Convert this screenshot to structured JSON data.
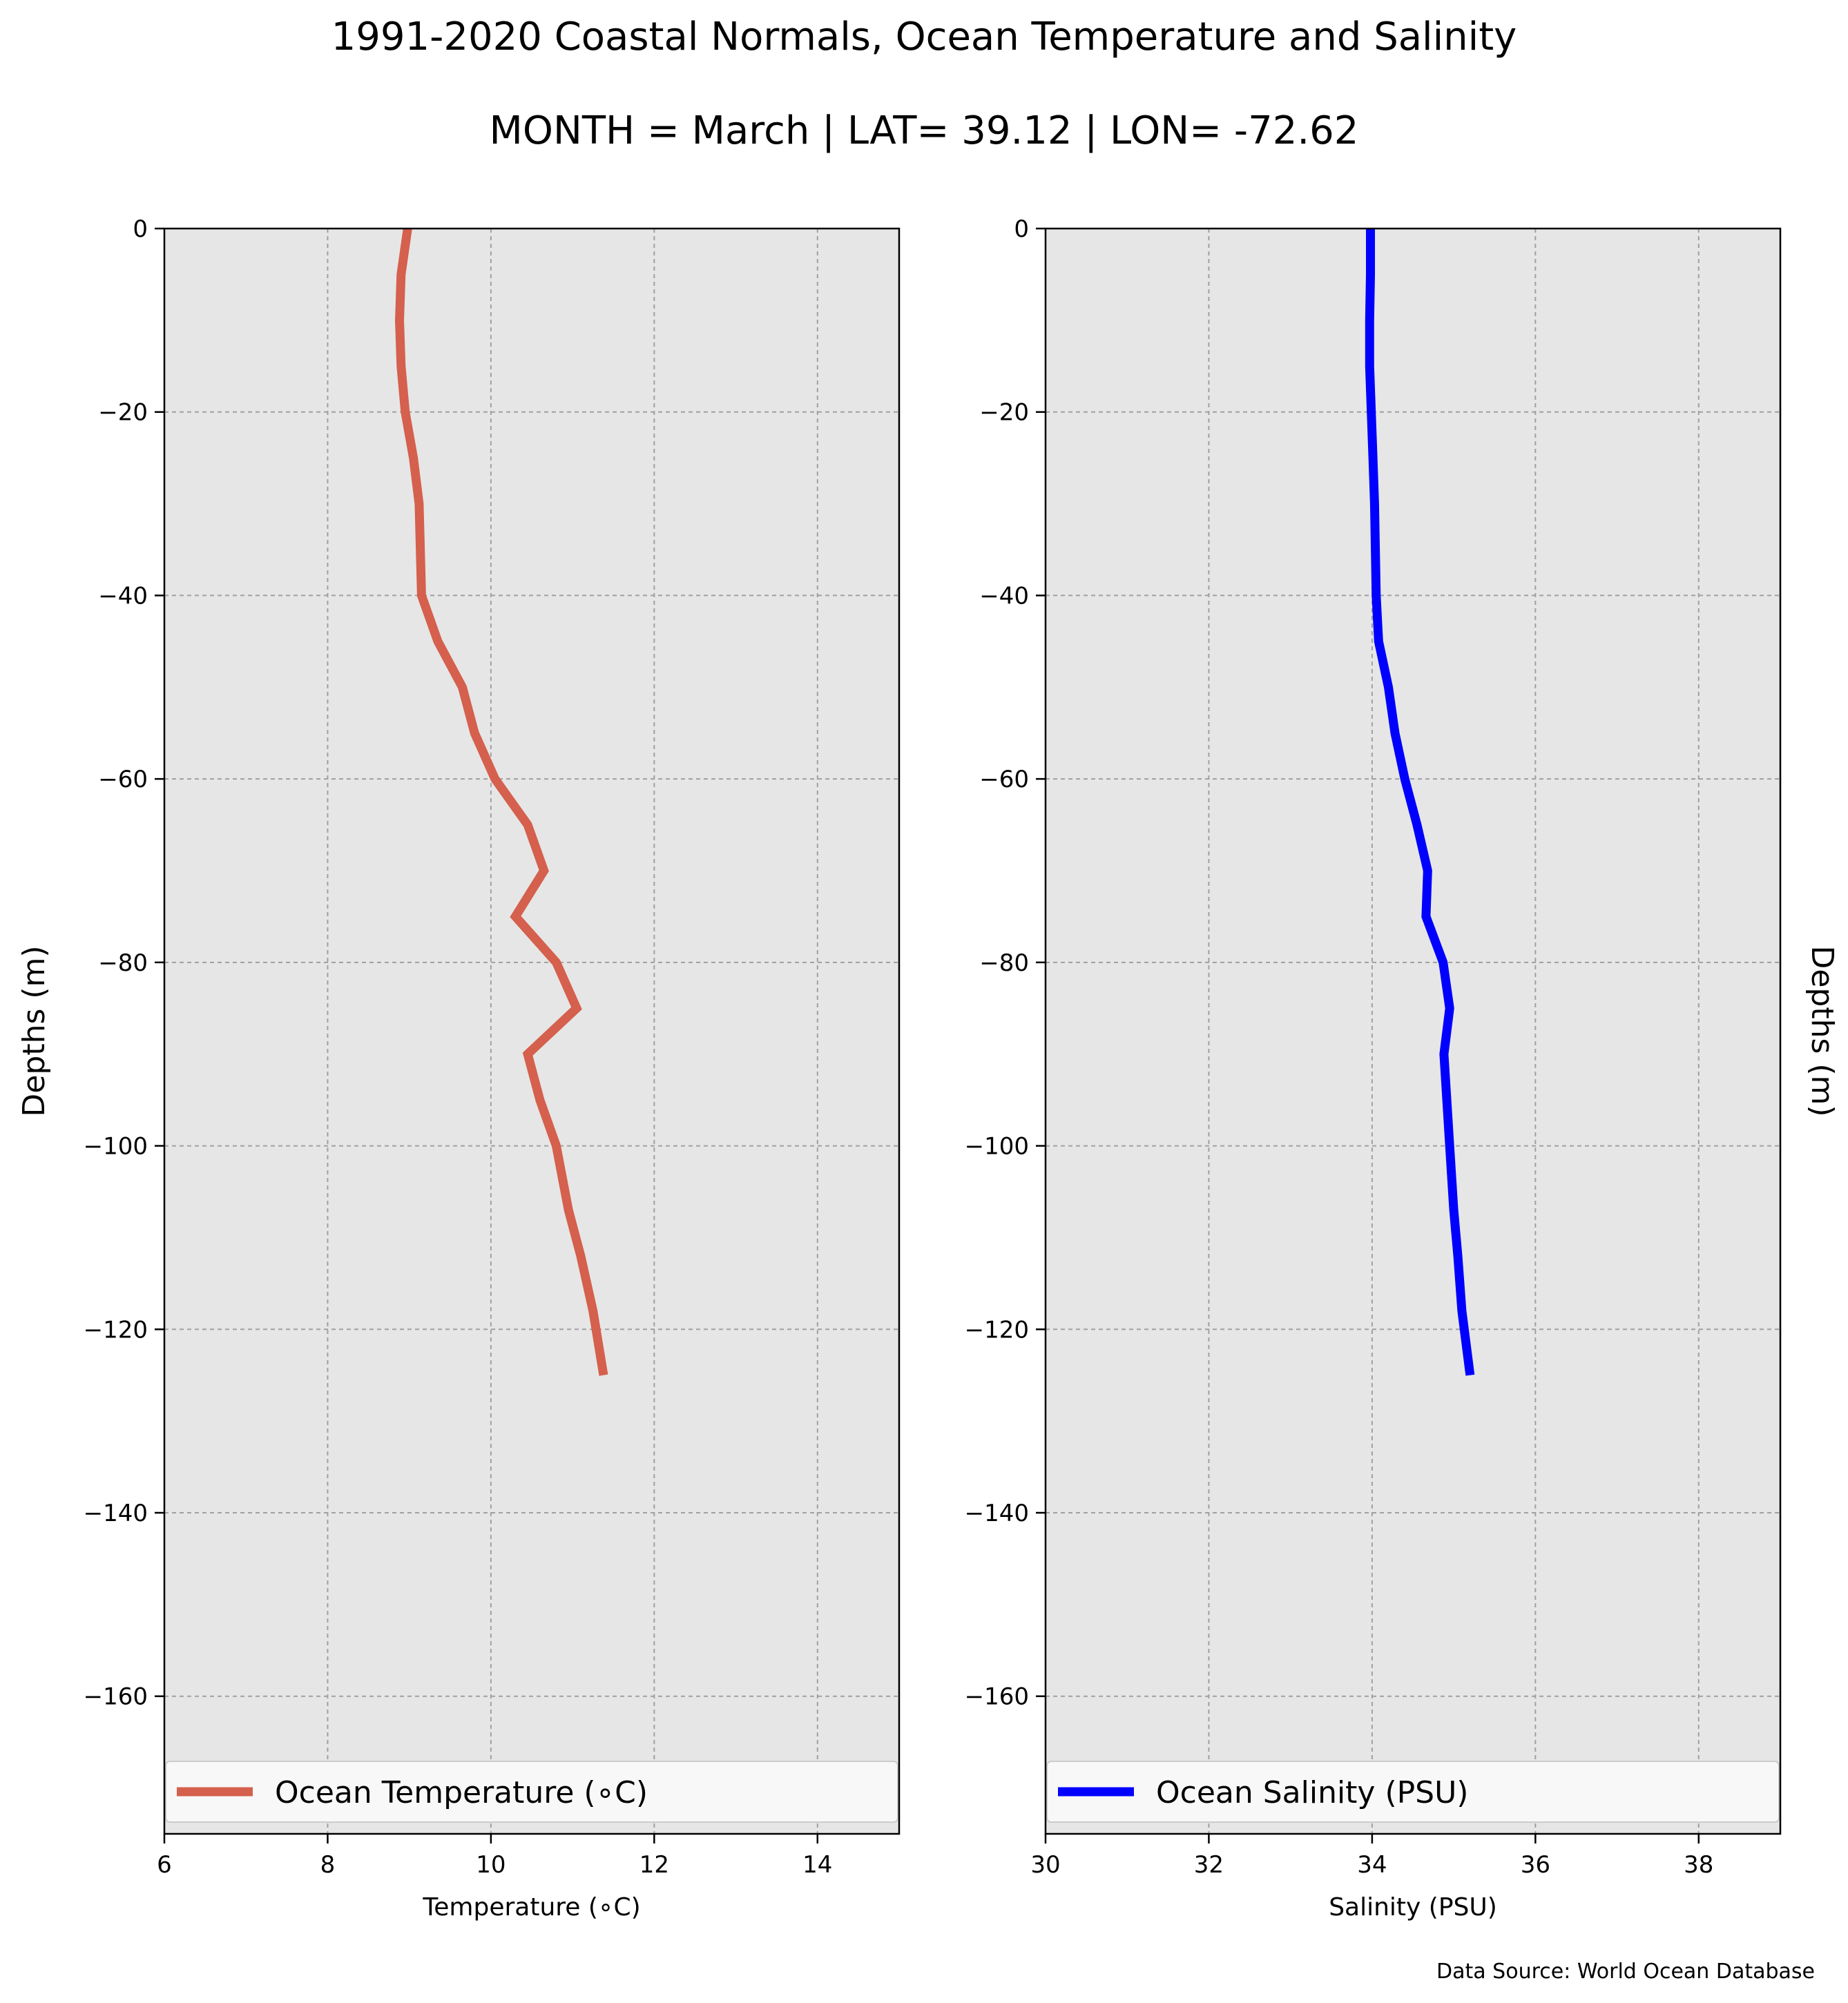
{
  "figure": {
    "title": "1991-2020 Coastal Normals, Ocean Temperature and Salinity",
    "subtitle": "MONTH = March | LAT= 39.12 | LON= -72.62",
    "source": "Data Source: World Ocean Database"
  },
  "chart_data": [
    {
      "type": "line",
      "xlabel": "Temperature ($^\\circ$C)",
      "xlabel_display": "Temperature (∘C)",
      "ylabel": "Depths (m)",
      "xlim": [
        6,
        15
      ],
      "ylim": [
        -175,
        0
      ],
      "x_ticks": [
        "6",
        "8",
        "10",
        "12",
        "14"
      ],
      "x_tick_values": [
        6,
        8,
        10,
        12,
        14
      ],
      "y_ticks": [
        "0",
        "−20",
        "−40",
        "−60",
        "−80",
        "−100",
        "−120",
        "−140",
        "−160"
      ],
      "y_tick_values": [
        0,
        -20,
        -40,
        -60,
        -80,
        -100,
        -120,
        -140,
        -160
      ],
      "grid": true,
      "legend_position": "bottom",
      "series": [
        {
          "name": "Ocean Temperature (∘C)",
          "color": "#d4604d",
          "x": [
            8.98,
            8.9,
            8.88,
            8.9,
            8.95,
            9.05,
            9.12,
            9.15,
            9.35,
            9.65,
            9.8,
            10.05,
            10.45,
            10.65,
            10.3,
            10.8,
            11.05,
            10.45,
            10.6,
            10.8,
            10.95,
            11.1,
            11.25,
            11.38
          ],
          "y": [
            0,
            -5,
            -10,
            -15,
            -20,
            -25,
            -30,
            -40,
            -45,
            -50,
            -55,
            -60,
            -65,
            -70,
            -75,
            -80,
            -85,
            -90,
            -95,
            -100,
            -107,
            -112,
            -118,
            -125
          ]
        }
      ]
    },
    {
      "type": "line",
      "xlabel": "Salinity (PSU)",
      "ylabel": "Depths (m)",
      "xlim": [
        30,
        39
      ],
      "ylim": [
        -175,
        0
      ],
      "x_ticks": [
        "30",
        "32",
        "34",
        "36",
        "38"
      ],
      "x_tick_values": [
        30,
        32,
        34,
        36,
        38
      ],
      "y_ticks": [
        "0",
        "−20",
        "−40",
        "−60",
        "−80",
        "−100",
        "−120",
        "−140",
        "−160"
      ],
      "y_tick_values": [
        0,
        -20,
        -40,
        -60,
        -80,
        -100,
        -120,
        -140,
        -160
      ],
      "grid": true,
      "legend_position": "bottom",
      "series": [
        {
          "name": "Ocean Salinity (PSU)",
          "color": "#0000ff",
          "x": [
            33.98,
            33.98,
            33.97,
            33.97,
            33.99,
            34.01,
            34.03,
            34.04,
            34.05,
            34.08,
            34.2,
            34.28,
            34.4,
            34.55,
            34.68,
            34.66,
            34.87,
            34.95,
            34.88,
            34.95,
            35.0,
            35.05,
            35.1,
            35.2
          ],
          "y": [
            0,
            -5,
            -10,
            -15,
            -20,
            -25,
            -30,
            -35,
            -40,
            -45,
            -50,
            -55,
            -60,
            -65,
            -70,
            -75,
            -80,
            -85,
            -90,
            -100,
            -107,
            -112,
            -118,
            -125
          ]
        }
      ]
    }
  ]
}
